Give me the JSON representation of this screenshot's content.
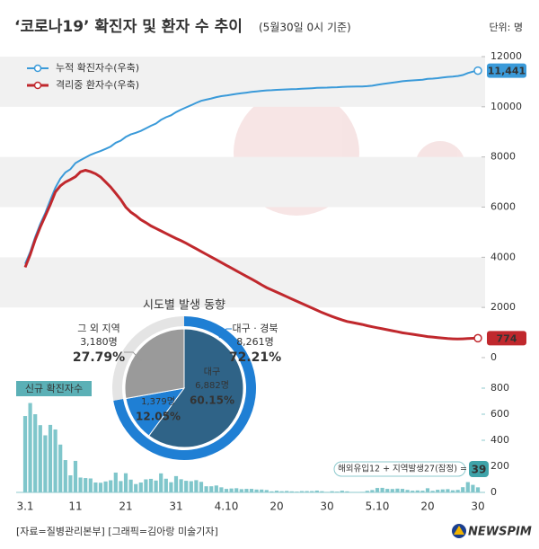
{
  "header": {
    "title": "‘코로나19’ 확진자 및 환자 수 추이",
    "subtitle": "(5월30일 0시 기준)",
    "unit": "단위: 명"
  },
  "chart_data": [
    {
      "type": "line",
      "ylim": [
        0,
        12000
      ],
      "yticks": [
        0,
        2000,
        4000,
        6000,
        8000,
        10000,
        12000
      ],
      "series": [
        {
          "name": "누적 확진자수(우축)",
          "color": "#3a9ad9",
          "last_label": "11,441",
          "values": [
            3736,
            4212,
            4812,
            5328,
            5766,
            6284,
            6767,
            7134,
            7382,
            7513,
            7755,
            7869,
            7979,
            8086,
            8162,
            8236,
            8320,
            8413,
            8565,
            8652,
            8799,
            8897,
            8961,
            9037,
            9137,
            9241,
            9332,
            9478,
            9583,
            9661,
            9786,
            9887,
            9976,
            10062,
            10156,
            10237,
            10284,
            10331,
            10384,
            10423,
            10450,
            10480,
            10512,
            10537,
            10564,
            10591,
            10613,
            10635,
            10653,
            10661,
            10674,
            10683,
            10694,
            10702,
            10708,
            10718,
            10728,
            10738,
            10752,
            10761,
            10765,
            10774,
            10780,
            10793,
            10801,
            10804,
            10806,
            10810,
            10822,
            10840,
            10874,
            10909,
            10936,
            10962,
            10991,
            11018,
            11037,
            11050,
            11065,
            11078,
            11110,
            11122,
            11142,
            11165,
            11190,
            11206,
            11225,
            11265,
            11344,
            11402,
            11441
          ]
        },
        {
          "name": "격리중 환자수(우축)",
          "color": "#c0282d",
          "last_label": "774",
          "values": [
            3600,
            4100,
            4700,
            5200,
            5650,
            6100,
            6600,
            6850,
            7000,
            7100,
            7212,
            7407,
            7470,
            7410,
            7330,
            7200,
            7000,
            6800,
            6550,
            6300,
            6000,
            5800,
            5660,
            5500,
            5380,
            5250,
            5150,
            5050,
            4950,
            4850,
            4750,
            4660,
            4560,
            4450,
            4340,
            4230,
            4120,
            4010,
            3900,
            3790,
            3680,
            3570,
            3460,
            3350,
            3240,
            3130,
            3020,
            2900,
            2790,
            2700,
            2610,
            2520,
            2430,
            2340,
            2250,
            2160,
            2070,
            1980,
            1890,
            1800,
            1720,
            1640,
            1570,
            1500,
            1440,
            1400,
            1360,
            1320,
            1270,
            1230,
            1190,
            1150,
            1110,
            1070,
            1030,
            990,
            960,
            930,
            900,
            870,
            840,
            820,
            800,
            780,
            760,
            750,
            740,
            750,
            760,
            770,
            774
          ]
        }
      ]
    },
    {
      "type": "pie",
      "title": "시도별 발생 동향",
      "categories": [
        "대구",
        "경북",
        "그 외 지역"
      ],
      "colors": [
        "#2f6387",
        "#1f7fd4",
        "#9a9a9a"
      ],
      "values": [
        60.15,
        12.05,
        27.79
      ],
      "value_labels": [
        "60.15%",
        "12.05%",
        "27.79%"
      ],
      "counts": [
        6882,
        1379,
        3180
      ],
      "count_labels": [
        "6,882명",
        "1,379명",
        "3,180명"
      ],
      "group": {
        "name": "대구 · 경북",
        "color": "#1f7fd4",
        "value": 72.21,
        "value_label": "72.21%",
        "count": 8261,
        "count_label": "8,261명"
      }
    },
    {
      "type": "bar",
      "label": "신규 확진자수",
      "color": "#7fc6cb",
      "annotation": "해외유입12 + 지역발생27(잠정) =",
      "categories": [
        "3.1",
        null,
        null,
        null,
        null,
        null,
        null,
        null,
        null,
        null,
        "11",
        null,
        null,
        null,
        null,
        null,
        null,
        null,
        null,
        null,
        "21",
        null,
        null,
        null,
        null,
        null,
        null,
        null,
        null,
        null,
        "31",
        null,
        null,
        null,
        null,
        null,
        null,
        null,
        null,
        null,
        "4.10",
        null,
        null,
        null,
        null,
        null,
        null,
        null,
        null,
        null,
        "20",
        null,
        null,
        null,
        null,
        null,
        null,
        null,
        null,
        null,
        "30",
        null,
        null,
        null,
        null,
        null,
        null,
        null,
        null,
        null,
        "5.10",
        null,
        null,
        null,
        null,
        null,
        null,
        null,
        null,
        null,
        "20",
        null,
        null,
        null,
        null,
        null,
        null,
        null,
        null,
        null,
        "30"
      ],
      "values": [
        586,
        686,
        600,
        516,
        438,
        518,
        483,
        367,
        248,
        131,
        242,
        114,
        110,
        107,
        76,
        74,
        84,
        93,
        152,
        87,
        147,
        98,
        64,
        76,
        100,
        104,
        91,
        146,
        105,
        78,
        125,
        101,
        89,
        86,
        94,
        81,
        47,
        47,
        53,
        39,
        27,
        30,
        32,
        25,
        27,
        27,
        22,
        22,
        18,
        8,
        13,
        9,
        11,
        8,
        6,
        10,
        10,
        10,
        14,
        9,
        4,
        9,
        6,
        13,
        8,
        3,
        2,
        4,
        12,
        18,
        34,
        35,
        27,
        26,
        29,
        27,
        19,
        13,
        15,
        13,
        32,
        12,
        20,
        23,
        25,
        16,
        19,
        40,
        79,
        58,
        39
      ],
      "ylim": [
        0,
        800
      ],
      "yticks": [
        0,
        200,
        400,
        600,
        800
      ]
    }
  ],
  "footer": {
    "source": "[자료=질병관리본부] [그래픽=김아랑 미술기자]",
    "logo": "NEWSPIM"
  }
}
